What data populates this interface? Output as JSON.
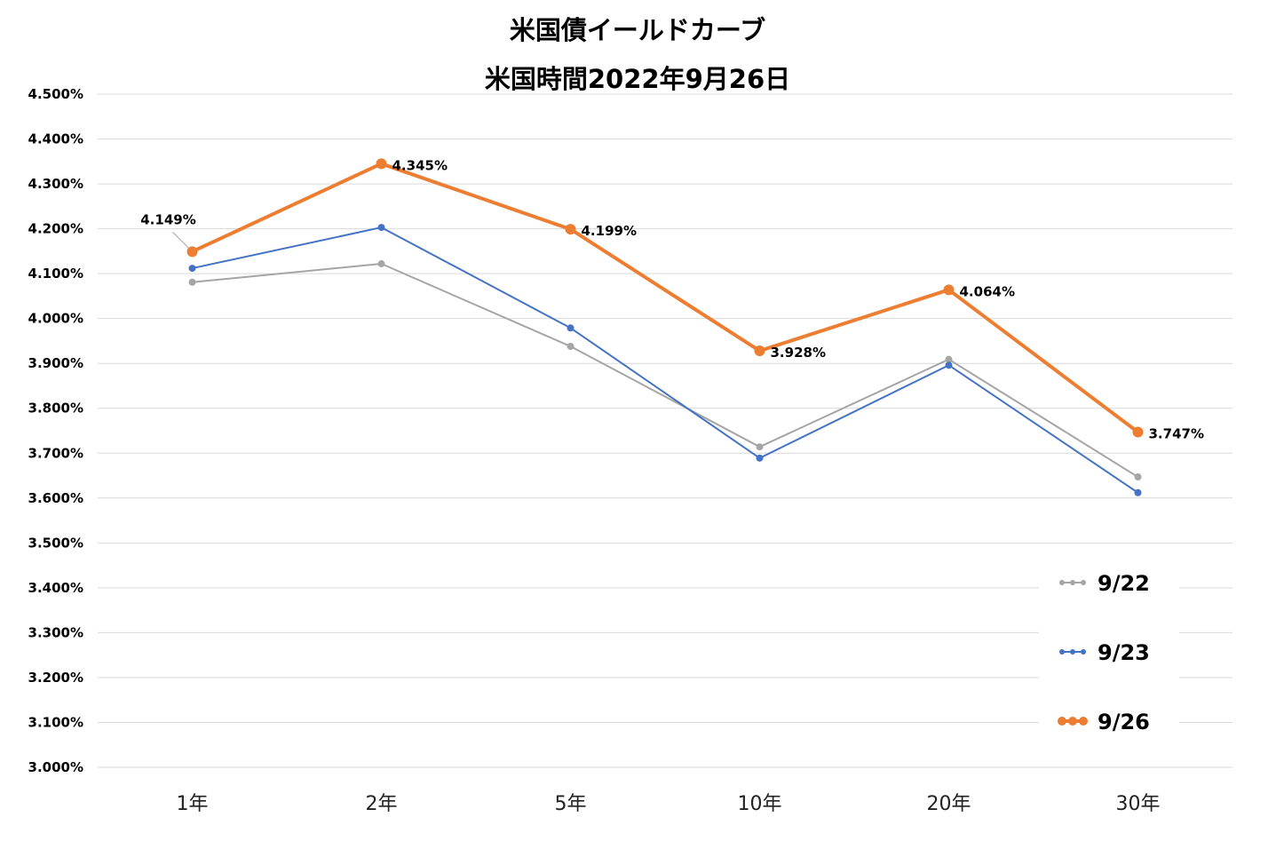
{
  "chart_data": {
    "type": "line",
    "title": "米国債イールドカーブ",
    "subtitle": "米国時間2022年9月26日",
    "categories": [
      "1年",
      "2年",
      "5年",
      "10年",
      "20年",
      "30年"
    ],
    "ylim": [
      3.0,
      4.5
    ],
    "ytick_values": [
      3.0,
      3.1,
      3.2,
      3.3,
      3.4,
      3.5,
      3.6,
      3.7,
      3.8,
      3.9,
      4.0,
      4.1,
      4.2,
      4.3,
      4.4,
      4.5
    ],
    "ytick_labels": [
      "3.000%",
      "3.100%",
      "3.200%",
      "3.300%",
      "3.400%",
      "3.500%",
      "3.600%",
      "3.700%",
      "3.800%",
      "3.900%",
      "4.000%",
      "4.100%",
      "4.200%",
      "4.300%",
      "4.400%",
      "4.500%"
    ],
    "grid": true,
    "legend_position": "bottom-right",
    "series": [
      {
        "name": "9/22",
        "color": "#a5a5a5",
        "values": [
          4.081,
          4.122,
          3.938,
          3.714,
          3.909,
          3.647
        ]
      },
      {
        "name": "9/23",
        "color": "#4472c4",
        "values": [
          4.112,
          4.203,
          3.979,
          3.689,
          3.896,
          3.612
        ]
      },
      {
        "name": "9/26",
        "color": "#ed7d31",
        "values": [
          4.149,
          4.345,
          4.199,
          3.928,
          4.064,
          3.747
        ],
        "data_labels": [
          "4.149%",
          "4.345%",
          "4.199%",
          "3.928%",
          "4.064%",
          "3.747%"
        ]
      }
    ]
  }
}
